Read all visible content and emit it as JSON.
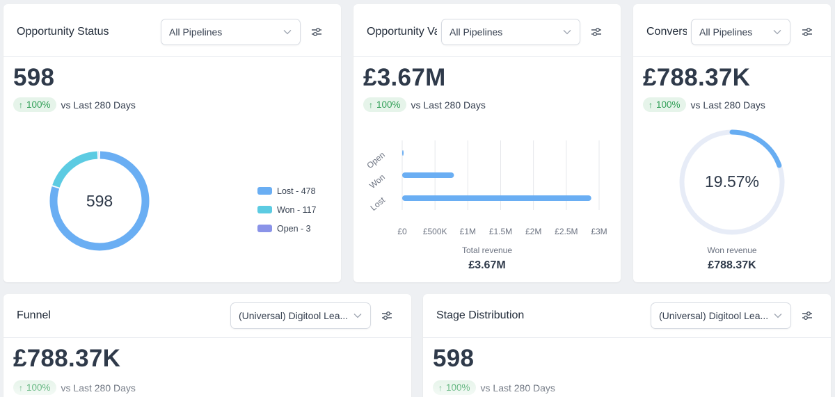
{
  "colors": {
    "lost": "#6aaef3",
    "won": "#5ccbe2",
    "open": "#8a93e8",
    "gauge_track": "#e7ecf7",
    "gauge_fill": "#67adf2",
    "badge_bg": "#e6f4ea",
    "badge_text": "#2f9e55"
  },
  "cards": {
    "opportunity_status": {
      "title": "Opportunity Status",
      "pipeline": "All Pipelines",
      "value": "598",
      "change": "100%",
      "period": "vs Last 280 Days",
      "donut_center": "598",
      "legend": [
        {
          "label": "Lost - 478"
        },
        {
          "label": "Won - 117"
        },
        {
          "label": "Open - 3"
        }
      ]
    },
    "opportunity_value": {
      "title": "Opportunity Value",
      "pipeline": "All Pipelines",
      "value": "£3.67M",
      "change": "100%",
      "period": "vs Last 280 Days",
      "caption": "Total revenue",
      "total": "£3.67M"
    },
    "conversion": {
      "title": "Conversion",
      "pipeline": "All Pipelines",
      "value": "£788.37K",
      "change": "100%",
      "period": "vs Last 280 Days",
      "gauge_text": "19.57%",
      "caption": "Won revenue",
      "total": "£788.37K"
    },
    "funnel": {
      "title": "Funnel",
      "pipeline": "(Universal) Digitool Lea...",
      "value": "£788.37K",
      "change": "100%",
      "period": "vs Last 280 Days"
    },
    "stage_distribution": {
      "title": "Stage Distribution",
      "pipeline": "(Universal) Digitool Lea...",
      "value": "598",
      "change": "100%",
      "period": "vs Last 280 Days"
    }
  },
  "chart_data": [
    {
      "type": "pie",
      "title": "Opportunity Status",
      "variant": "donut",
      "categories": [
        "Lost",
        "Won",
        "Open"
      ],
      "values": [
        478,
        117,
        3
      ],
      "center_label": "598"
    },
    {
      "type": "bar",
      "orientation": "horizontal",
      "title": "Opportunity Value",
      "categories": [
        "Open",
        "Won",
        "Lost"
      ],
      "values": [
        10000,
        788370,
        2880000
      ],
      "xlim": [
        0,
        3000000
      ],
      "x_ticks": [
        0,
        500000,
        1000000,
        1500000,
        2000000,
        2500000,
        3000000
      ],
      "x_tick_labels": [
        "£0",
        "£500K",
        "£1M",
        "£1.5M",
        "£2M",
        "£2.5M",
        "£3M"
      ],
      "xlabel": "Total revenue",
      "grid": true
    },
    {
      "type": "gauge",
      "title": "Conversion",
      "value": 19.57,
      "max": 100,
      "label": "19.57%"
    }
  ]
}
